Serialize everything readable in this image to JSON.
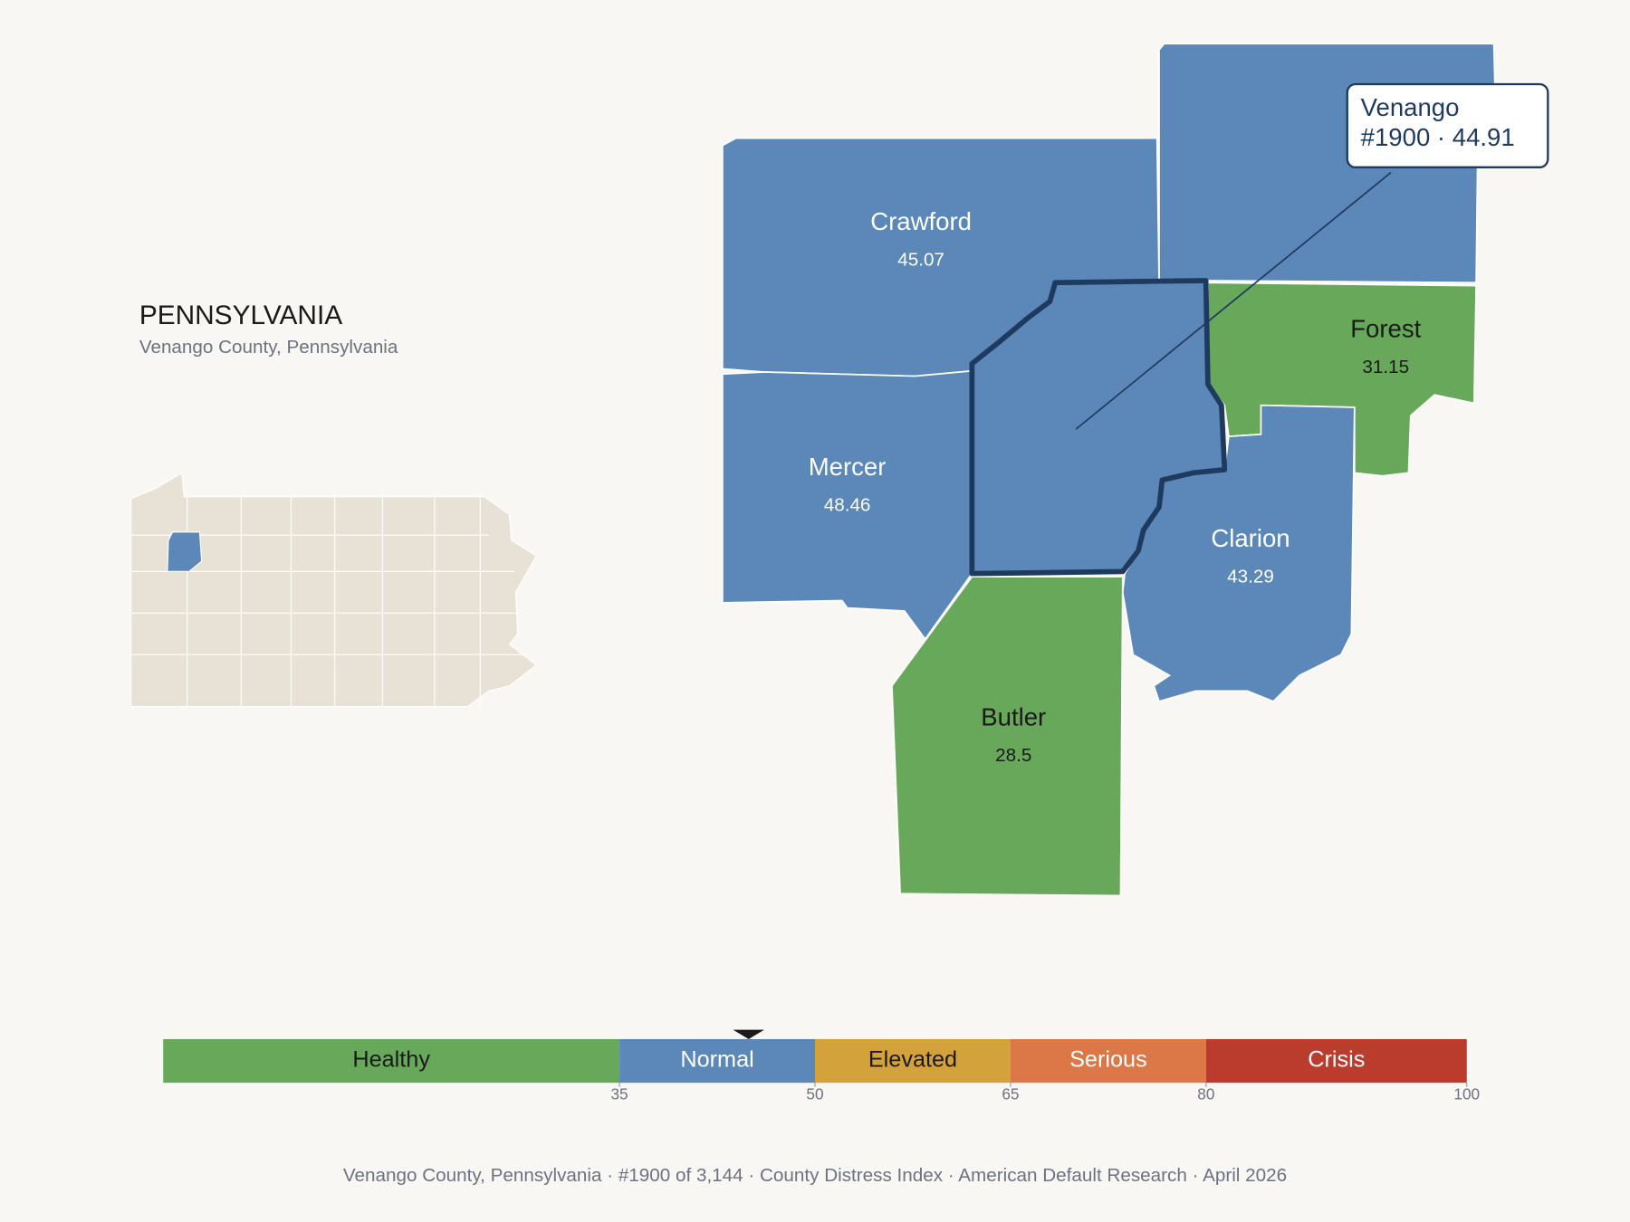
{
  "header": {
    "title": "PENNSYLVANIA",
    "subtitle": "Venango County, Pennsylvania"
  },
  "focus": {
    "name": "Venango",
    "value": 44.91,
    "detail": "#1900 · 44.91"
  },
  "counties": [
    {
      "name": "Crawford",
      "value": 45.07
    },
    {
      "name": "Forest",
      "value": 31.15
    },
    {
      "name": "Mercer",
      "value": 48.46
    },
    {
      "name": "Clarion",
      "value": 43.29
    },
    {
      "name": "Butler",
      "value": 28.5
    }
  ],
  "scale": {
    "xlim": [
      0,
      100
    ],
    "xticks": [
      35,
      50,
      65,
      80,
      100
    ],
    "bands": [
      {
        "label": "Healthy",
        "color": "#68a85a"
      },
      {
        "label": "Normal",
        "color": "#5b88b8"
      },
      {
        "label": "Elevated",
        "color": "#d4a23a"
      },
      {
        "label": "Serious",
        "color": "#dc7748"
      },
      {
        "label": "Crisis",
        "color": "#b93c2c"
      }
    ]
  },
  "footer": "Venango County, Pennsylvania  ·  #1900 of 3,144  ·  County Distress Index  ·  American Default Research  ·  April 2026"
}
